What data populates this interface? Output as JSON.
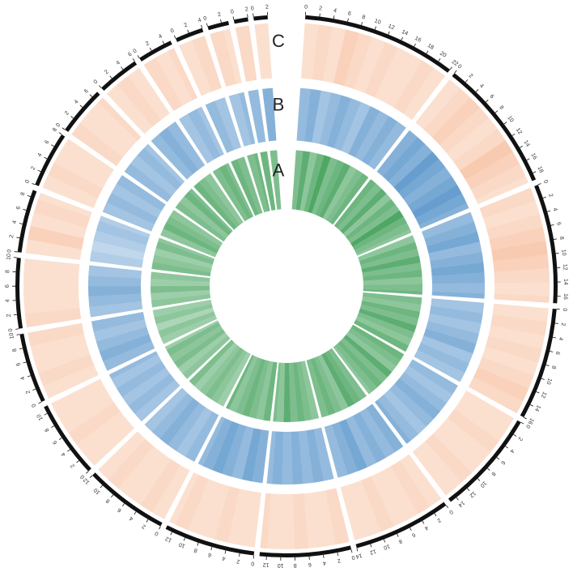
{
  "chart_data": {
    "type": "circos",
    "chromosomes": [
      {
        "length": 22,
        "ticks": [
          0,
          2,
          4,
          6,
          8,
          10,
          12,
          14,
          16,
          18,
          20,
          22
        ]
      },
      {
        "length": 19,
        "ticks": [
          0,
          2,
          4,
          6,
          8,
          10,
          12,
          14,
          16,
          18
        ]
      },
      {
        "length": 17,
        "ticks": [
          0,
          2,
          4,
          6,
          8,
          10,
          12,
          14,
          16
        ]
      },
      {
        "length": 16,
        "ticks": [
          0,
          2,
          4,
          6,
          8,
          10,
          12,
          14,
          16
        ]
      },
      {
        "length": 15,
        "ticks": [
          0,
          2,
          4,
          6,
          8,
          10,
          12,
          14
        ]
      },
      {
        "length": 14,
        "ticks": [
          0,
          2,
          4,
          6,
          8,
          10,
          12,
          14
        ]
      },
      {
        "length": 13,
        "ticks": [
          0,
          2,
          4,
          6,
          8,
          10,
          12
        ]
      },
      {
        "length": 13,
        "ticks": [
          0,
          2,
          4,
          6,
          8,
          10,
          12
        ]
      },
      {
        "length": 12,
        "ticks": [
          0,
          2,
          4,
          6,
          8,
          10,
          12
        ]
      },
      {
        "length": 11,
        "ticks": [
          0,
          2,
          4,
          6,
          8,
          10
        ]
      },
      {
        "length": 10,
        "ticks": [
          0,
          2,
          4,
          6,
          8,
          10
        ]
      },
      {
        "length": 10,
        "ticks": [
          0,
          2,
          4,
          6,
          8,
          10
        ]
      },
      {
        "length": 9,
        "ticks": [
          0,
          2,
          4,
          6,
          8
        ]
      },
      {
        "length": 8,
        "ticks": [
          0,
          2,
          4,
          6,
          8
        ]
      },
      {
        "length": 7,
        "ticks": [
          0,
          2,
          4,
          6
        ]
      },
      {
        "length": 6,
        "ticks": [
          0,
          2,
          4,
          6
        ]
      },
      {
        "length": 5,
        "ticks": [
          0,
          2,
          4
        ]
      },
      {
        "length": 4,
        "ticks": [
          0,
          2,
          4
        ]
      },
      {
        "length": 3,
        "ticks": [
          0,
          2
        ]
      },
      {
        "length": 2,
        "ticks": [
          0,
          2
        ]
      },
      {
        "length": 2,
        "ticks": [
          0,
          2
        ]
      }
    ],
    "bin_size": 2,
    "tracks": [
      {
        "name": "A",
        "color": "#3f9e57",
        "values": [
          [
            0.6,
            0.8,
            0.5,
            0.7,
            0.9,
            0.6,
            0.7,
            0.8,
            0.5,
            0.6,
            0.7
          ],
          [
            0.7,
            0.6,
            0.8,
            0.5,
            0.7,
            0.6,
            0.9,
            0.7,
            0.6,
            0.5
          ],
          [
            0.5,
            0.7,
            0.6,
            0.8,
            0.6,
            0.7,
            0.5,
            0.6,
            0.7
          ],
          [
            0.6,
            0.5,
            0.7,
            0.6,
            0.8,
            0.6,
            0.5,
            0.7
          ],
          [
            0.7,
            0.6,
            0.5,
            0.8,
            0.6,
            0.7,
            0.6,
            0.5
          ],
          [
            0.6,
            0.7,
            0.8,
            0.5,
            0.6,
            0.7,
            0.6
          ],
          [
            0.5,
            0.6,
            0.7,
            0.6,
            0.8,
            0.5,
            0.6
          ],
          [
            0.7,
            0.5,
            0.6,
            0.7,
            0.6,
            0.5,
            0.7
          ],
          [
            0.4,
            0.5,
            0.6,
            0.5,
            0.4,
            0.6
          ],
          [
            0.5,
            0.4,
            0.6,
            0.5,
            0.6,
            0.4
          ],
          [
            0.4,
            0.5,
            0.3,
            0.5,
            0.4
          ],
          [
            0.5,
            0.4,
            0.6,
            0.4,
            0.5
          ],
          [
            0.6,
            0.5,
            0.4,
            0.6,
            0.5
          ],
          [
            0.5,
            0.7,
            0.6,
            0.5
          ],
          [
            0.6,
            0.5,
            0.7,
            0.6
          ],
          [
            0.7,
            0.6,
            0.5
          ],
          [
            0.6,
            0.7,
            0.6
          ],
          [
            0.7,
            0.6
          ],
          [
            0.6,
            0.7
          ],
          [
            0.7
          ],
          [
            0.6
          ]
        ]
      },
      {
        "name": "B",
        "color": "#4a8bc6",
        "values": [
          [
            0.5,
            0.6,
            0.4,
            0.5,
            0.6,
            0.5,
            0.4,
            0.6,
            0.5,
            0.6,
            0.5
          ],
          [
            0.6,
            0.7,
            0.6,
            0.8,
            0.7,
            0.6,
            0.7,
            0.8,
            0.7,
            0.6
          ],
          [
            0.5,
            0.6,
            0.7,
            0.5,
            0.6,
            0.7,
            0.6,
            0.5,
            0.6
          ],
          [
            0.4,
            0.5,
            0.4,
            0.5,
            0.6,
            0.4,
            0.5,
            0.4
          ],
          [
            0.5,
            0.4,
            0.5,
            0.6,
            0.5,
            0.4,
            0.5,
            0.6
          ],
          [
            0.6,
            0.5,
            0.6,
            0.5,
            0.7,
            0.6,
            0.5
          ],
          [
            0.5,
            0.6,
            0.5,
            0.6,
            0.5,
            0.6,
            0.5
          ],
          [
            0.6,
            0.7,
            0.5,
            0.6,
            0.7,
            0.6,
            0.5
          ],
          [
            0.5,
            0.4,
            0.5,
            0.6,
            0.5,
            0.4
          ],
          [
            0.4,
            0.5,
            0.4,
            0.5,
            0.4,
            0.5
          ],
          [
            0.5,
            0.6,
            0.5,
            0.4,
            0.5
          ],
          [
            0.4,
            0.5,
            0.6,
            0.5,
            0.4
          ],
          [
            0.3,
            0.2,
            0.3,
            0.4,
            0.3
          ],
          [
            0.4,
            0.5,
            0.4,
            0.5
          ],
          [
            0.5,
            0.4,
            0.5,
            0.4
          ],
          [
            0.5,
            0.6,
            0.5
          ],
          [
            0.4,
            0.5,
            0.4
          ],
          [
            0.5,
            0.4
          ],
          [
            0.4,
            0.5
          ],
          [
            0.5
          ],
          [
            0.6
          ]
        ]
      },
      {
        "name": "C",
        "color": "#f4a57a",
        "values": [
          [
            0.2,
            0.3,
            0.2,
            0.4,
            0.3,
            0.2,
            0.3,
            0.2,
            0.2,
            0.3,
            0.2
          ],
          [
            0.2,
            0.3,
            0.4,
            0.3,
            0.2,
            0.3,
            0.5,
            0.4,
            0.3,
            0.2
          ],
          [
            0.3,
            0.2,
            0.3,
            0.4,
            0.5,
            0.4,
            0.3,
            0.2,
            0.3
          ],
          [
            0.2,
            0.3,
            0.2,
            0.3,
            0.2,
            0.3,
            0.4,
            0.3
          ],
          [
            0.2,
            0.2,
            0.3,
            0.2,
            0.2,
            0.3,
            0.2,
            0.2
          ],
          [
            0.2,
            0.3,
            0.2,
            0.2,
            0.3,
            0.2,
            0.2
          ],
          [
            0.3,
            0.2,
            0.2,
            0.3,
            0.2,
            0.2,
            0.3
          ],
          [
            0.2,
            0.2,
            0.3,
            0.2,
            0.2,
            0.3,
            0.2
          ],
          [
            0.2,
            0.3,
            0.2,
            0.2,
            0.3,
            0.2
          ],
          [
            0.2,
            0.2,
            0.3,
            0.2,
            0.2,
            0.2
          ],
          [
            0.2,
            0.3,
            0.2,
            0.2,
            0.3
          ],
          [
            0.3,
            0.2,
            0.2,
            0.2,
            0.2
          ],
          [
            0.2,
            0.4,
            0.2,
            0.3,
            0.2
          ],
          [
            0.2,
            0.3,
            0.2,
            0.2
          ],
          [
            0.3,
            0.2,
            0.2,
            0.3
          ],
          [
            0.2,
            0.3,
            0.2
          ],
          [
            0.3,
            0.2,
            0.3
          ],
          [
            0.2,
            0.3
          ],
          [
            0.3,
            0.2
          ],
          [
            0.3
          ],
          [
            0.2
          ]
        ]
      }
    ]
  }
}
